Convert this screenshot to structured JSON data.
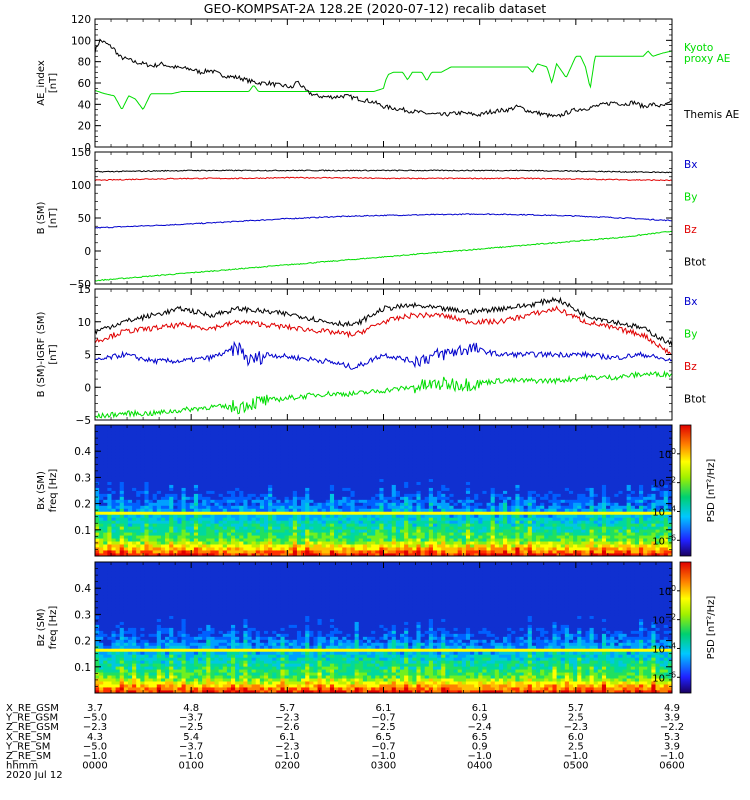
{
  "title": "GEO-KOMPSAT-2A 128.2E (2020-07-12) recalib dataset",
  "colors": {
    "black": "#000000",
    "red": "#e00000",
    "blue": "#0000cc",
    "green": "#00dd00"
  },
  "chart_data": [
    {
      "type": "line",
      "panel": "ae",
      "ylabel": [
        "AE_index",
        "[nT]"
      ],
      "ylim": [
        0,
        120
      ],
      "yticks": [
        0,
        20,
        40,
        60,
        80,
        100,
        120
      ],
      "xlim": [
        0,
        6
      ],
      "series": [
        {
          "name": "Kyoto proxy AE",
          "label_lines": [
            "Kyoto",
            "proxy AE"
          ],
          "color": "#00dd00",
          "x": [
            0,
            0.1,
            0.2,
            0.28,
            0.35,
            0.42,
            0.5,
            0.58,
            0.66,
            0.75,
            0.8,
            0.9,
            1.0,
            1.1,
            1.2,
            1.3,
            1.4,
            1.5,
            1.6,
            1.65,
            1.7,
            1.8,
            1.9,
            2.0,
            2.2,
            2.4,
            2.6,
            2.8,
            2.9,
            3.0,
            3.02,
            3.05,
            3.1,
            3.2,
            3.25,
            3.3,
            3.4,
            3.45,
            3.5,
            3.6,
            3.7,
            3.8,
            3.9,
            4.0,
            4.1,
            4.2,
            4.3,
            4.4,
            4.5,
            4.55,
            4.6,
            4.7,
            4.75,
            4.8,
            4.9,
            5.0,
            5.05,
            5.1,
            5.15,
            5.2,
            5.3,
            5.4,
            5.5,
            5.6,
            5.7,
            5.75,
            5.8,
            5.9,
            6.0
          ],
          "y": [
            53,
            50,
            48,
            35,
            48,
            45,
            35,
            50,
            50,
            50,
            50,
            52,
            52,
            52,
            52,
            52,
            52,
            52,
            52,
            58,
            52,
            52,
            52,
            52,
            52,
            52,
            52,
            52,
            52,
            55,
            62,
            68,
            70,
            70,
            63,
            70,
            70,
            62,
            70,
            70,
            75,
            75,
            75,
            75,
            75,
            75,
            75,
            75,
            75,
            70,
            78,
            75,
            60,
            78,
            65,
            85,
            85,
            75,
            55,
            85,
            85,
            85,
            85,
            85,
            85,
            90,
            85,
            88,
            90
          ]
        },
        {
          "name": "Themis AE",
          "label_lines": [
            "Themis AE"
          ],
          "color": "#000000",
          "x": [
            0,
            0.05,
            0.1,
            0.15,
            0.2,
            0.25,
            0.3,
            0.35,
            0.4,
            0.5,
            0.6,
            0.7,
            0.8,
            0.9,
            1.0,
            1.1,
            1.2,
            1.3,
            1.4,
            1.5,
            1.6,
            1.7,
            1.8,
            1.9,
            2.0,
            2.05,
            2.1,
            2.2,
            2.3,
            2.4,
            2.5,
            2.6,
            2.7,
            2.8,
            2.9,
            3.0,
            3.2,
            3.4,
            3.6,
            3.8,
            4.0,
            4.1,
            4.2,
            4.3,
            4.4,
            4.5,
            4.6,
            4.7,
            4.8,
            4.9,
            5.0,
            5.1,
            5.2,
            5.3,
            5.4,
            5.5,
            5.6,
            5.7,
            5.8,
            5.9,
            6.0
          ],
          "y": [
            90,
            100,
            98,
            95,
            92,
            85,
            83,
            82,
            80,
            78,
            76,
            78,
            75,
            74,
            73,
            70,
            72,
            68,
            66,
            65,
            62,
            60,
            60,
            58,
            57,
            55,
            62,
            52,
            48,
            47,
            47,
            48,
            46,
            44,
            42,
            38,
            35,
            32,
            30,
            32,
            30,
            33,
            34,
            35,
            38,
            34,
            32,
            30,
            28,
            32,
            35,
            36,
            38,
            40,
            42,
            40,
            42,
            38,
            40,
            38,
            42
          ]
        }
      ]
    },
    {
      "type": "line",
      "panel": "b_sm",
      "ylabel": [
        "B (SM)",
        "[nT]"
      ],
      "ylim": [
        -50,
        150
      ],
      "yticks": [
        -50,
        0,
        50,
        100,
        150
      ],
      "xlim": [
        0,
        6
      ],
      "series": [
        {
          "name": "Bx",
          "color": "#0000cc",
          "x": [
            0,
            0.5,
            1.0,
            1.5,
            2.0,
            2.5,
            3.0,
            3.5,
            4.0,
            4.5,
            5.0,
            5.5,
            6.0
          ],
          "y": [
            35,
            38,
            41,
            45,
            49,
            52,
            54,
            55,
            56,
            55,
            53,
            50,
            46
          ]
        },
        {
          "name": "By",
          "color": "#00dd00",
          "x": [
            0,
            0.5,
            1.0,
            1.5,
            2.0,
            2.5,
            3.0,
            3.5,
            4.0,
            4.5,
            5.0,
            5.5,
            6.0
          ],
          "y": [
            -45,
            -39,
            -33,
            -27,
            -21,
            -15,
            -9,
            -3,
            3,
            9,
            15,
            21,
            30
          ]
        },
        {
          "name": "Bz",
          "color": "#e00000",
          "x": [
            0,
            0.5,
            1.0,
            1.5,
            2.0,
            2.5,
            3.0,
            3.5,
            4.0,
            4.5,
            5.0,
            5.5,
            6.0
          ],
          "y": [
            107,
            109,
            110,
            110,
            111,
            111,
            110,
            110,
            110,
            110,
            109,
            108,
            107
          ]
        },
        {
          "name": "Btot",
          "color": "#000000",
          "x": [
            0,
            0.5,
            1.0,
            1.5,
            2.0,
            2.5,
            3.0,
            3.5,
            4.0,
            4.5,
            5.0,
            5.5,
            6.0
          ],
          "y": [
            120,
            121,
            122,
            122,
            122,
            122,
            122,
            122,
            122,
            122,
            121,
            120,
            119
          ]
        }
      ]
    },
    {
      "type": "line",
      "panel": "b_minus_igrf",
      "ylabel": [
        "B (SM)-IGRF (SM)",
        "[nT]"
      ],
      "ylim": [
        -5,
        15
      ],
      "yticks": [
        -5,
        0,
        5,
        10,
        15
      ],
      "xlim": [
        0,
        6
      ],
      "series": [
        {
          "name": "Bx",
          "color": "#0000cc",
          "x": [
            0,
            0.3,
            0.6,
            0.9,
            1.2,
            1.5,
            1.6,
            1.8,
            2.1,
            2.4,
            2.7,
            3.0,
            3.3,
            3.6,
            3.9,
            4.2,
            4.5,
            4.8,
            5.1,
            5.4,
            5.7,
            6.0
          ],
          "y": [
            4,
            5,
            4,
            4,
            4.5,
            6,
            4,
            5,
            4.5,
            4,
            3,
            5,
            4,
            5,
            6,
            5,
            5,
            5,
            5,
            4.5,
            5,
            4
          ]
        },
        {
          "name": "By",
          "color": "#00dd00",
          "x": [
            0,
            0.3,
            0.6,
            0.9,
            1.2,
            1.5,
            1.6,
            1.8,
            2.1,
            2.4,
            2.7,
            3.0,
            3.3,
            3.6,
            3.9,
            4.2,
            4.5,
            4.8,
            5.1,
            5.4,
            5.7,
            6.0
          ],
          "y": [
            -4.5,
            -4,
            -4,
            -3.5,
            -3,
            -3,
            -2.5,
            -2,
            -1.5,
            -1,
            -1,
            -0.5,
            0,
            0.5,
            0.5,
            1,
            1,
            1,
            1.5,
            1.5,
            2,
            2
          ]
        },
        {
          "name": "Bz",
          "color": "#e00000",
          "x": [
            0,
            0.3,
            0.6,
            0.9,
            1.2,
            1.5,
            1.8,
            2.1,
            2.4,
            2.7,
            3.0,
            3.3,
            3.6,
            3.9,
            4.2,
            4.5,
            4.8,
            5.1,
            5.4,
            5.7,
            6.0
          ],
          "y": [
            7,
            8.5,
            9,
            9.5,
            9,
            10,
            9.5,
            9,
            8.5,
            8,
            10,
            11,
            11,
            10,
            10,
            11,
            12,
            10,
            9,
            8,
            5
          ]
        },
        {
          "name": "Btot",
          "color": "#000000",
          "x": [
            0,
            0.3,
            0.6,
            0.9,
            1.2,
            1.5,
            1.8,
            2.1,
            2.4,
            2.7,
            3.0,
            3.3,
            3.6,
            3.9,
            4.2,
            4.5,
            4.8,
            5.1,
            5.4,
            5.7,
            6.0
          ],
          "y": [
            8.5,
            10,
            11,
            12,
            11,
            12,
            11.5,
            11,
            10,
            9.5,
            12,
            12.5,
            12,
            11.5,
            12,
            12.5,
            13.5,
            11,
            10,
            9,
            6.5
          ]
        }
      ]
    },
    {
      "type": "heatmap",
      "panel": "bx_spec",
      "ylabel": [
        "Bx (SM)",
        "freq [Hz]"
      ],
      "ylim": [
        0,
        0.5
      ],
      "yticks": [
        0.1,
        0.2,
        0.3,
        0.4
      ],
      "xlim": [
        0,
        6
      ],
      "colorbar": {
        "label": "PSD [nT^2/Hz]",
        "ticks": [
          "10^0",
          "10^-2",
          "10^-4",
          "10^-6"
        ]
      }
    },
    {
      "type": "heatmap",
      "panel": "bz_spec",
      "ylabel": [
        "Bz (SM)",
        "freq [Hz]"
      ],
      "ylim": [
        0,
        0.5
      ],
      "yticks": [
        0.1,
        0.2,
        0.3,
        0.4
      ],
      "xlim": [
        0,
        6
      ],
      "colorbar": {
        "label": "PSD [nT^2/Hz]",
        "ticks": [
          "10^0",
          "10^-2",
          "10^-4",
          "10^-6"
        ]
      }
    }
  ],
  "ephemeris": {
    "rows": [
      {
        "label": "X_RE_GSM",
        "values": [
          "3.7",
          "4.8",
          "5.7",
          "6.1",
          "6.1",
          "5.7",
          "4.9"
        ]
      },
      {
        "label": "Y_RE_GSM",
        "values": [
          "-5.0",
          "-3.7",
          "-2.3",
          "-0.7",
          "0.9",
          "2.5",
          "3.9"
        ]
      },
      {
        "label": "Z_RE_GSM",
        "values": [
          "-2.3",
          "-2.5",
          "-2.6",
          "-2.5",
          "-2.4",
          "-2.3",
          "-2.2"
        ]
      },
      {
        "label": "X_RE_SM",
        "values": [
          "4.3",
          "5.4",
          "6.1",
          "6.5",
          "6.5",
          "6.0",
          "5.3"
        ]
      },
      {
        "label": "Y_RE_SM",
        "values": [
          "-5.0",
          "-3.7",
          "-2.3",
          "-0.7",
          "0.9",
          "2.5",
          "3.9"
        ]
      },
      {
        "label": "Z_RE_SM",
        "values": [
          "-1.0",
          "-1.0",
          "-1.0",
          "-1.0",
          "-1.0",
          "-1.0",
          "-1.0"
        ]
      },
      {
        "label": "hhmm",
        "values": [
          "0000",
          "0100",
          "0200",
          "0300",
          "0400",
          "0500",
          "0600"
        ]
      }
    ],
    "date": "2020 Jul 12"
  }
}
